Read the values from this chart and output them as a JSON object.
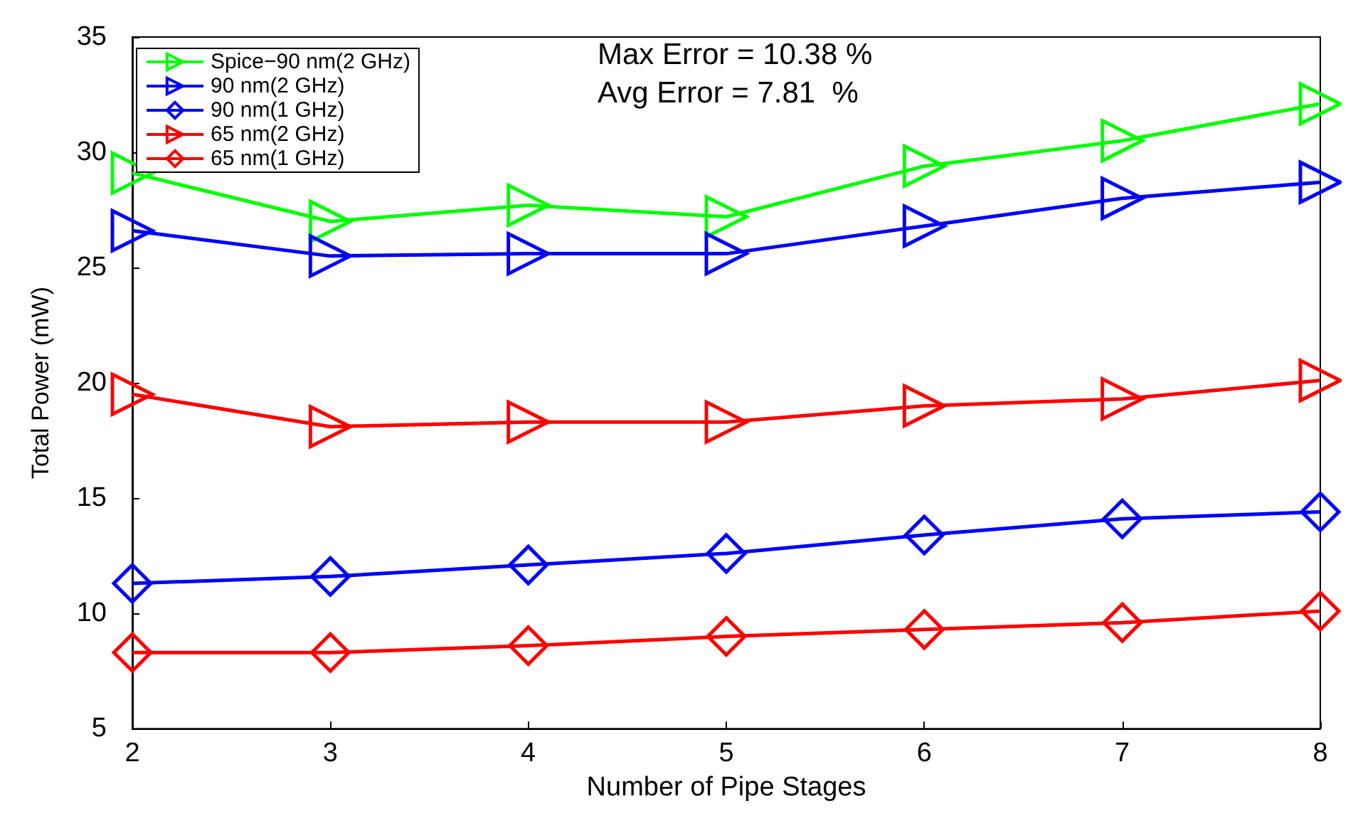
{
  "chart_data": {
    "type": "line",
    "xlabel": "Number of Pipe Stages",
    "ylabel": "Total Power (mW)",
    "x": [
      2,
      3,
      4,
      5,
      6,
      7,
      8
    ],
    "series": [
      {
        "name": "Spice−90 nm(2 GHz)",
        "color": "#00ff00",
        "marker": "triangle",
        "values": [
          29.1,
          27.0,
          27.7,
          27.2,
          29.4,
          30.5,
          32.1
        ]
      },
      {
        "name": "90 nm(2 GHz)",
        "color": "#0000ff",
        "marker": "triangle",
        "values": [
          26.6,
          25.5,
          25.6,
          25.6,
          26.8,
          28.0,
          28.7
        ]
      },
      {
        "name": "90 nm(1 GHz)",
        "color": "#0000ff",
        "marker": "diamond",
        "values": [
          11.3,
          11.6,
          12.1,
          12.6,
          13.4,
          14.1,
          14.4
        ]
      },
      {
        "name": "65 nm(2 GHz)",
        "color": "#ff0000",
        "marker": "triangle",
        "values": [
          19.5,
          18.1,
          18.3,
          18.3,
          19.0,
          19.3,
          20.1
        ]
      },
      {
        "name": "65 nm(1 GHz)",
        "color": "#ff0000",
        "marker": "diamond",
        "values": [
          8.3,
          8.3,
          8.6,
          9.0,
          9.3,
          9.6,
          10.1
        ]
      }
    ],
    "xlim": [
      2,
      8
    ],
    "xticks": [
      2,
      3,
      4,
      5,
      6,
      7,
      8
    ],
    "ylim": [
      5,
      35
    ],
    "yticks": [
      5,
      10,
      15,
      20,
      25,
      30,
      35
    ],
    "grid": false,
    "legend": "top left",
    "line_style": "solid",
    "annotations": [
      "Max Error = 10.38 %",
      "Avg Error = 7.81  %"
    ]
  }
}
